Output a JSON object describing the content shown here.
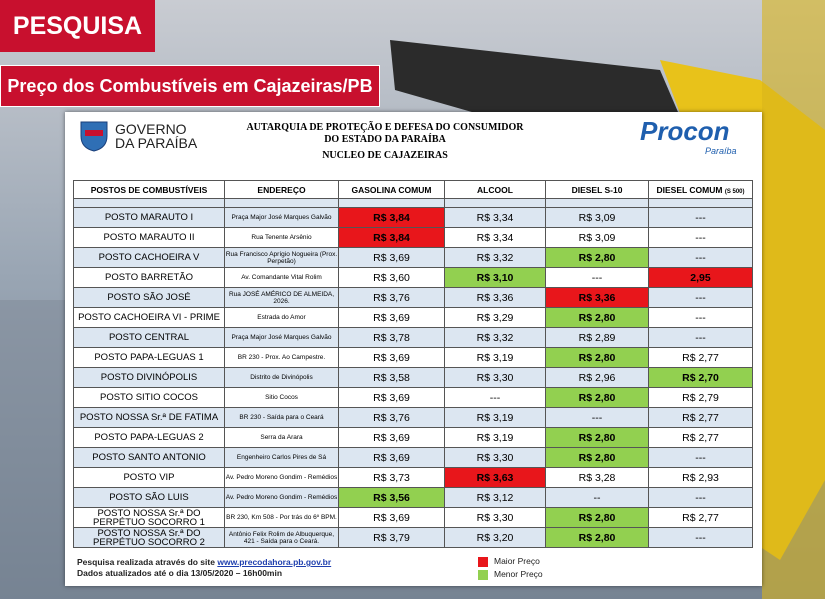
{
  "header": {
    "tag": "PESQUISA",
    "title": "Preço dos Combustíveis em Cajazeiras/PB"
  },
  "document": {
    "gov_line1": "GOVERNO",
    "gov_line2": "DA PARAÍBA",
    "agency_line1": "AUTARQUIA DE PROTEÇÃO E DEFESA DO CONSUMIDOR",
    "agency_line2": "DO ESTADO DA PARAÍBA",
    "agency_line3": "NUCLEO DE CAJAZEIRAS",
    "brand": "Procon",
    "brand_sub": "Paraíba"
  },
  "table": {
    "columns": [
      "POSTOS DE COMBUSTÍVEIS",
      "ENDEREÇO",
      "GASOLINA COMUM",
      "ALCOOL",
      "DIESEL S-10",
      "DIESEL COMUM"
    ],
    "column_note": "(S 500)",
    "rows": [
      [
        "POSTO MARAUTO I",
        "Praça Major José Marques Galvão",
        "R$ 3,84",
        "R$ 3,34",
        "R$ 3,09",
        "---"
      ],
      [
        "POSTO MARAUTO II",
        "Rua Tenente Arsênio",
        "R$ 3,84",
        "R$ 3,34",
        "R$ 3,09",
        "---"
      ],
      [
        "POSTO CACHOEIRA V",
        "Rua Francisco Aprígio Nogueira (Prox. Perpetão)",
        "R$ 3,69",
        "R$ 3,32",
        "R$ 2,80",
        "---"
      ],
      [
        "POSTO BARRETÃO",
        "Av. Comandante Vital Rolim",
        "R$ 3,60",
        "R$ 3,10",
        "---",
        "2,95"
      ],
      [
        "POSTO SÃO JOSÉ",
        "Rua JOSÉ AMÉRICO DE ALMEIDA, 2026.",
        "R$ 3,76",
        "R$ 3,36",
        "R$ 3,36",
        "---"
      ],
      [
        "POSTO CACHOEIRA VI - PRIME",
        "Estrada do Amor",
        "R$ 3,69",
        "R$ 3,29",
        "R$ 2,80",
        "---"
      ],
      [
        "POSTO CENTRAL",
        "Praça Major José Marques Galvão",
        "R$ 3,78",
        "R$ 3,32",
        "R$ 2,89",
        "---"
      ],
      [
        "POSTO PAPA-LEGUAS 1",
        "BR 230 - Prox. Ao Campestre.",
        "R$ 3,69",
        "R$ 3,19",
        "R$ 2,80",
        "R$ 2,77"
      ],
      [
        "POSTO DIVINÓPOLIS",
        "Distrito de Divinópolis",
        "R$ 3,58",
        "R$ 3,30",
        "R$ 2,96",
        "R$ 2,70"
      ],
      [
        "POSTO SITIO COCOS",
        "Sitio Cocos",
        "R$ 3,69",
        "---",
        "R$ 2,80",
        "R$ 2,79"
      ],
      [
        "POSTO NOSSA Sr.ª DE FATIMA",
        "BR 230 - Saída para o Ceará",
        "R$ 3,76",
        "R$ 3,19",
        "---",
        "R$ 2,77"
      ],
      [
        "POSTO PAPA-LEGUAS 2",
        "Serra da Arara",
        "R$ 3,69",
        "R$ 3,19",
        "R$ 2,80",
        "R$ 2,77"
      ],
      [
        "POSTO SANTO ANTONIO",
        "Engenheiro Carlos Pires de Sá",
        "R$ 3,69",
        "R$ 3,30",
        "R$ 2,80",
        "---"
      ],
      [
        "POSTO VIP",
        "Av. Pedro Moreno Gondim - Remédios",
        "R$ 3,73",
        "R$ 3,63",
        "R$ 3,28",
        "R$ 2,93"
      ],
      [
        "POSTO SÃO LUIS",
        "Av. Pedro Moreno Gondim - Remédios",
        "R$ 3,56",
        "R$ 3,12",
        "--",
        "---"
      ],
      [
        "POSTO NOSSA Sr.ª DO PERPÉTUO SOCORRO 1",
        "BR 230, Km 508 - Por trás do 6º BPM.",
        "R$ 3,69",
        "R$ 3,30",
        "R$ 2,80",
        "R$ 2,77"
      ],
      [
        "POSTO NOSSA Sr.ª DO PERPÉTUO SOCORRO 2",
        "Antônio Felix Rolim de Albuquerque, 421 - Saída para o Ceará.",
        "R$ 3,79",
        "R$ 3,20",
        "R$ 2,80",
        "---"
      ]
    ]
  },
  "legend": [
    {
      "label": "Maior Preço",
      "color": "#e8161b",
      "cells": [
        [
          0,
          2
        ],
        [
          1,
          2
        ],
        [
          3,
          5
        ],
        [
          4,
          4
        ],
        [
          13,
          3
        ]
      ]
    },
    {
      "label": "Menor Preço",
      "color": "#92d050",
      "cells": [
        [
          2,
          4
        ],
        [
          3,
          3
        ],
        [
          5,
          4
        ],
        [
          7,
          4
        ],
        [
          8,
          5
        ],
        [
          9,
          4
        ],
        [
          11,
          4
        ],
        [
          12,
          4
        ],
        [
          14,
          2
        ],
        [
          15,
          4
        ],
        [
          16,
          4
        ]
      ]
    }
  ],
  "footer": {
    "line1": "Pesquisa realizada através do site",
    "link": "www.precodahora.pb.gov.br",
    "line2": "Dados atualizados até o dia 13/05/2020 – 16h00min"
  }
}
